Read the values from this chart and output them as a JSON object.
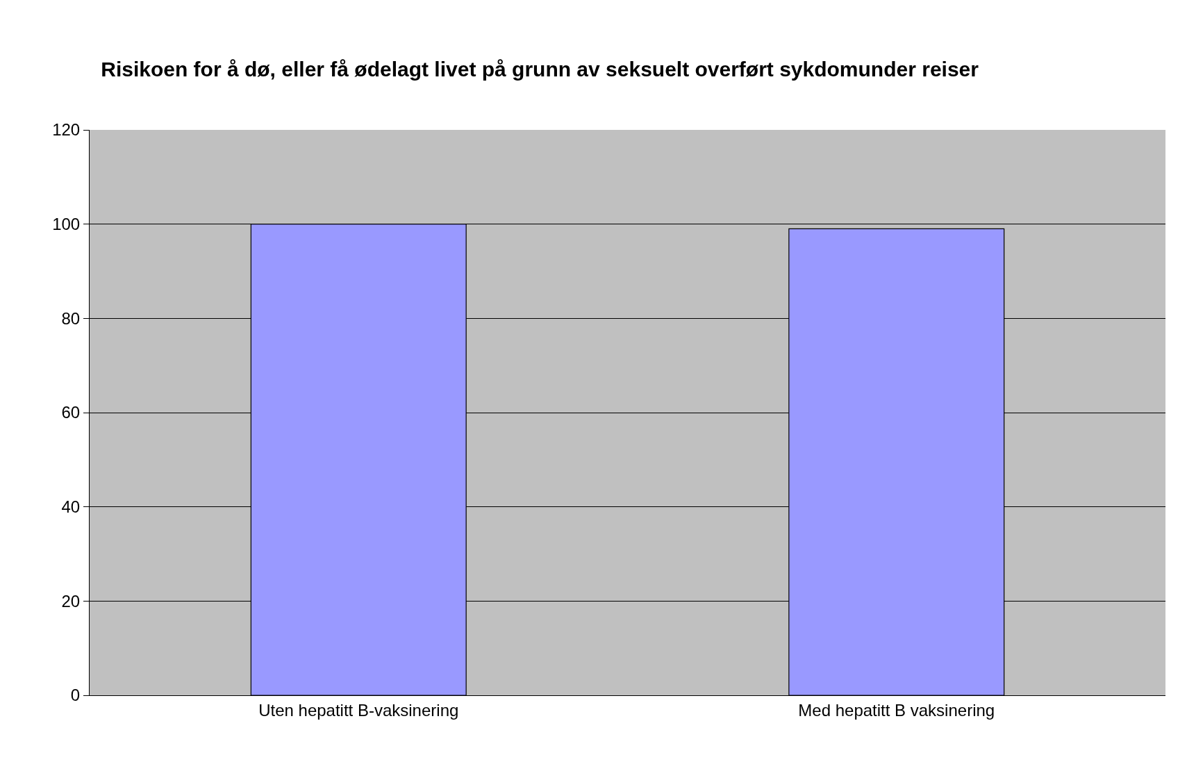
{
  "chart_data": {
    "type": "bar",
    "title": "Risikoen for å dø, eller få ødelagt livet på grunn av seksuelt overført sykdomunder reiser",
    "categories": [
      "Uten hepatitt B-vaksinering",
      "Med hepatitt B vaksinering"
    ],
    "values": [
      100,
      99
    ],
    "color": "#9999ff",
    "ylim": [
      0,
      120
    ],
    "yticks": [
      0,
      20,
      40,
      60,
      80,
      100,
      120
    ],
    "grid": "y",
    "legend": false
  }
}
